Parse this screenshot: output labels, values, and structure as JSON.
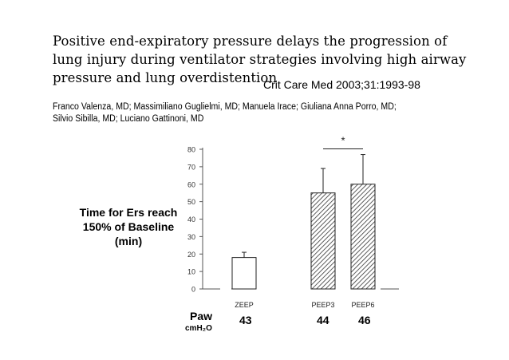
{
  "paper": {
    "title": "Positive end-expiratory pressure delays the progression of lung injury during ventilator strategies involving high airway pressure and lung overdistention",
    "citation": "Crit Care Med 2003;31:1993-98",
    "authors_line1": "Franco Valenza, MD; Massimiliano Guglielmi, MD; Manuela Irace; Giuliana Anna Porro, MD;",
    "authors_line2": "Silvio Sibilla, MD; Luciano Gattinoni, MD"
  },
  "chart_data": {
    "type": "bar",
    "title": "",
    "ylabel": "Time for Ers reach 150% of Baseline (min)",
    "xlabel": "",
    "categories": [
      "ZEEP",
      "PEEP3",
      "PEEP6"
    ],
    "values": [
      18,
      55,
      60
    ],
    "error_upper": [
      21,
      69,
      77
    ],
    "ylim": [
      0,
      80
    ],
    "yticks": [
      0,
      10,
      20,
      30,
      40,
      50,
      60,
      70,
      80
    ],
    "bar_styles": [
      "open",
      "hatched",
      "hatched"
    ],
    "significance": {
      "between": [
        "PEEP3",
        "PEEP6"
      ],
      "label": "*"
    },
    "grid": false,
    "paw": {
      "label": "Paw",
      "unit": "cmH₂O",
      "values": [
        "43",
        "44",
        "46"
      ]
    },
    "colors": {
      "axis": "#555555",
      "bar_edge": "#222222",
      "hatch": "#333333",
      "fill_open": "#ffffff"
    }
  }
}
